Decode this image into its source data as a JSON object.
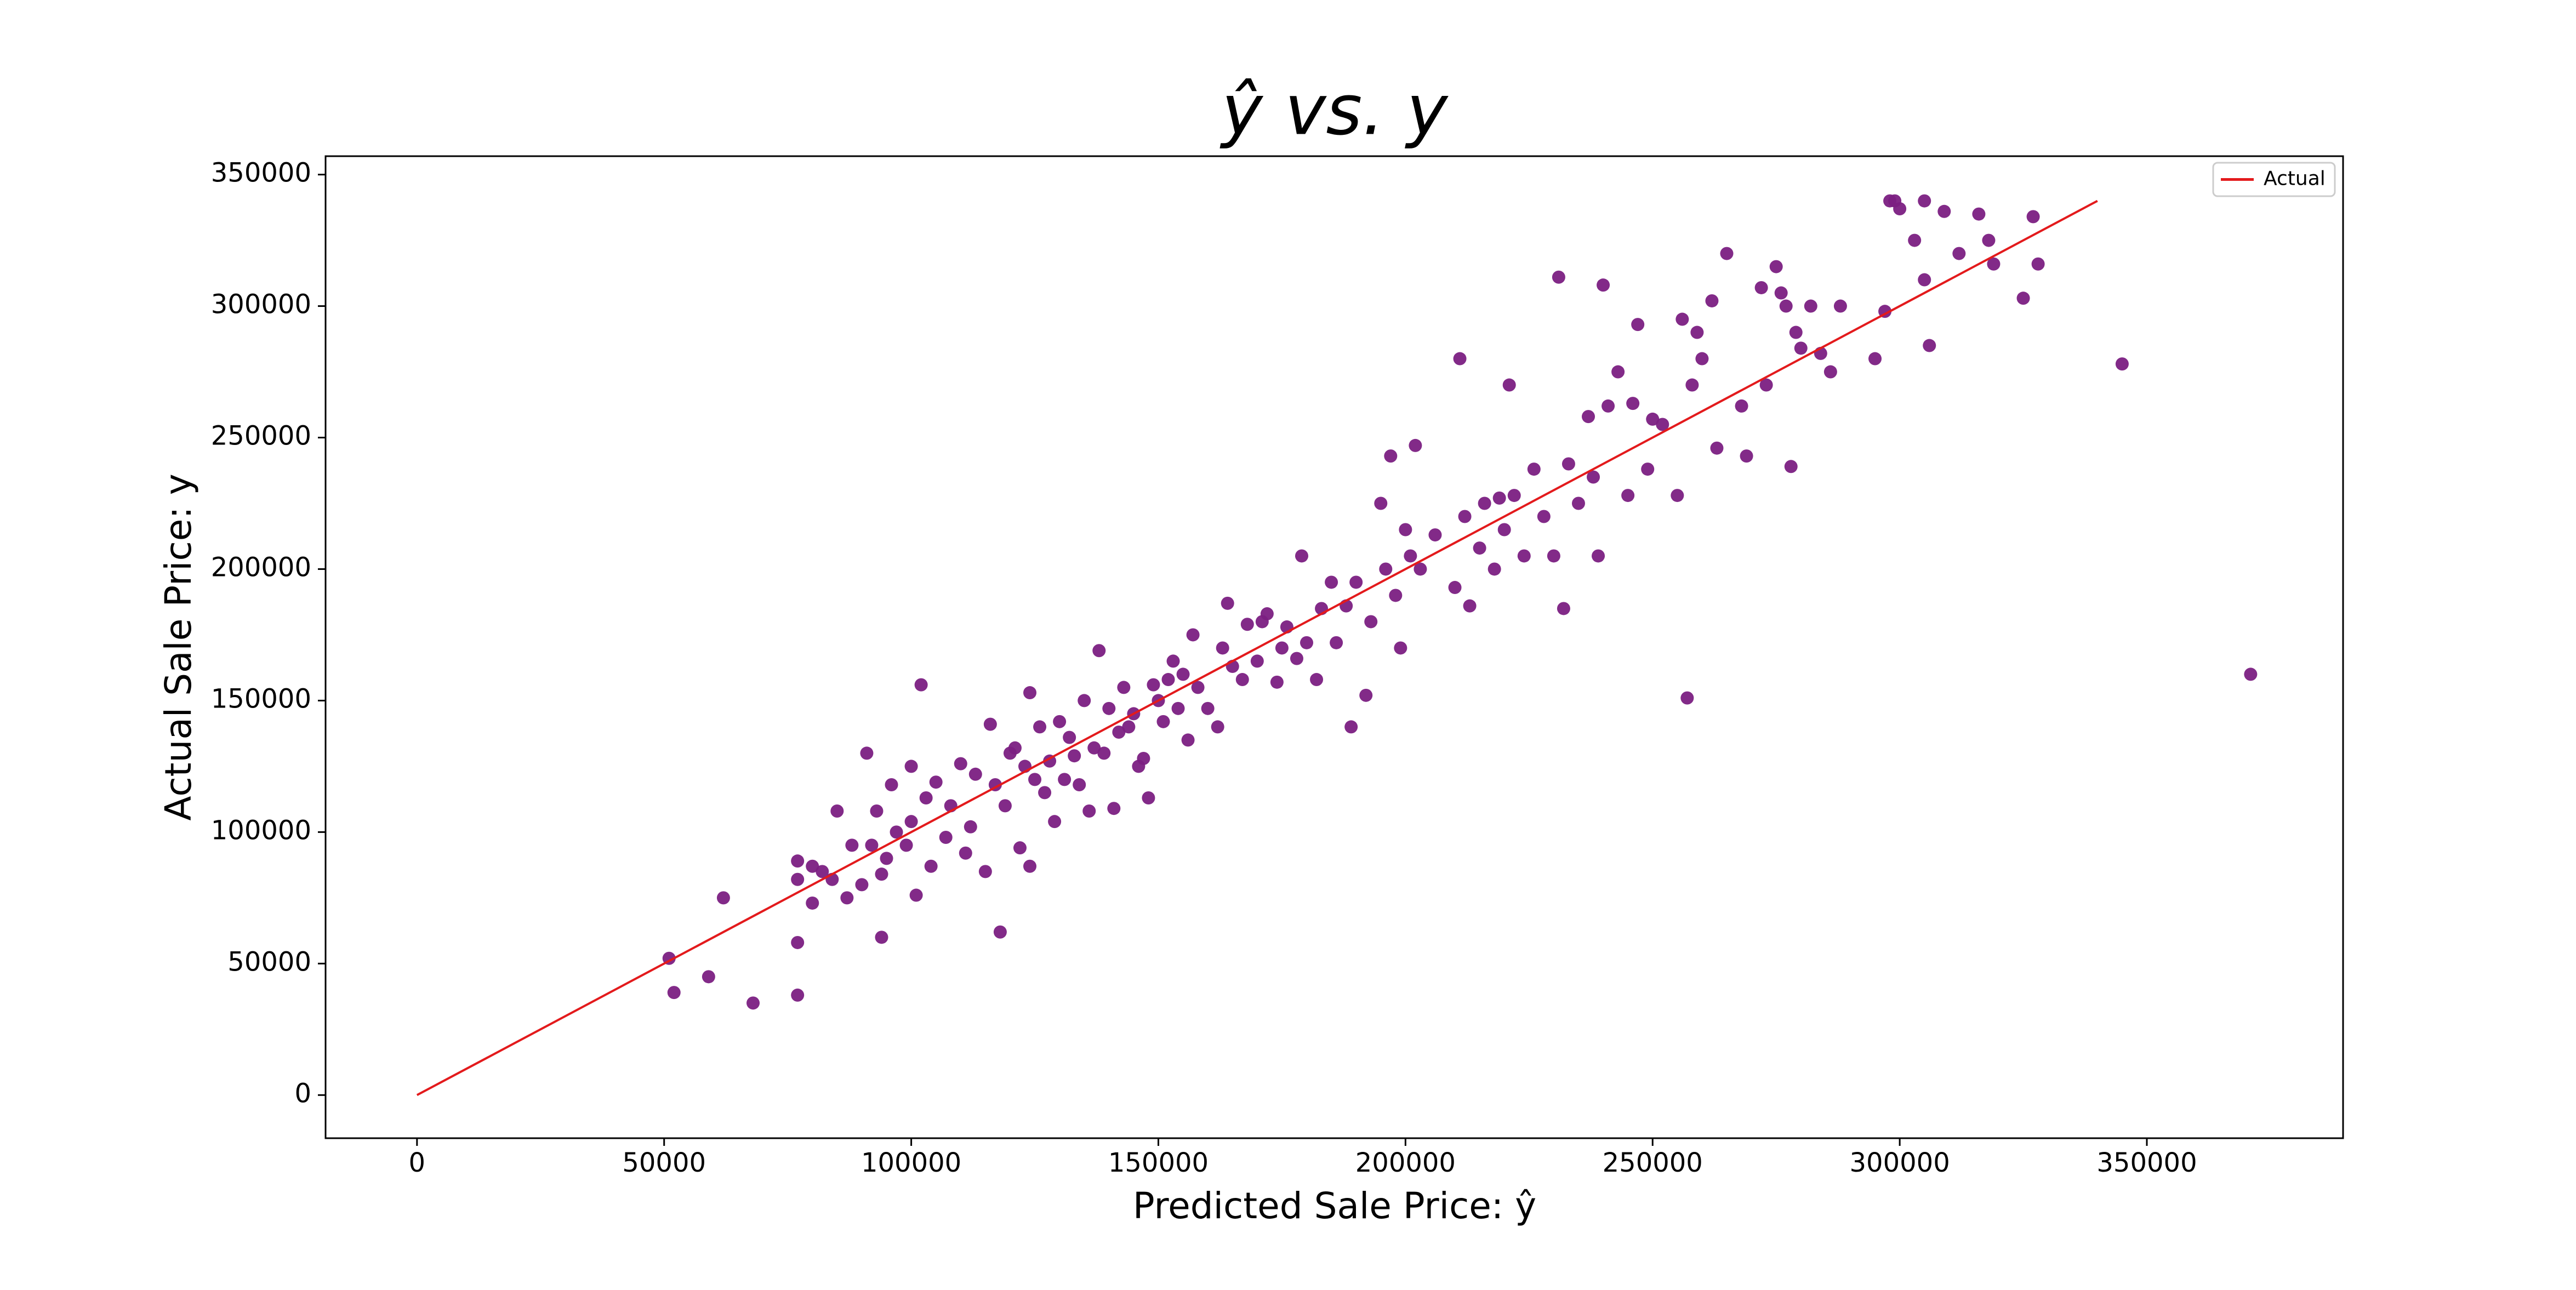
{
  "chart_data": {
    "type": "scatter",
    "title": "ŷ vs. y",
    "x_label": "Predicted Sale Price: ŷ",
    "y_label": "Actual Sale Price: y",
    "xlim": [
      -18500,
      389700
    ],
    "ylim": [
      -16400,
      357000
    ],
    "xticks": [
      0,
      50000,
      100000,
      150000,
      200000,
      250000,
      300000,
      350000
    ],
    "yticks": [
      0,
      50000,
      100000,
      150000,
      200000,
      250000,
      300000,
      350000
    ],
    "grid": false,
    "legend": "upper right",
    "series": [
      {
        "name": "Actual",
        "color": "#e31a1c",
        "x": [
          0,
          340000
        ],
        "values": [
          0,
          340000
        ]
      }
    ],
    "scatter": {
      "color": "#7b1f82",
      "x": [
        51000,
        52000,
        59000,
        62000,
        68000,
        77000,
        77000,
        77000,
        77000,
        80000,
        80000,
        82000,
        84000,
        85000,
        87000,
        88000,
        90000,
        91000,
        92000,
        93000,
        94000,
        94000,
        95000,
        96000,
        97000,
        99000,
        100000,
        100000,
        101000,
        102000,
        103000,
        104000,
        105000,
        107000,
        108000,
        110000,
        111000,
        112000,
        113000,
        115000,
        116000,
        117000,
        118000,
        119000,
        120000,
        121000,
        122000,
        123000,
        124000,
        124000,
        125000,
        126000,
        127000,
        128000,
        129000,
        130000,
        131000,
        132000,
        133000,
        134000,
        135000,
        136000,
        137000,
        138000,
        139000,
        140000,
        141000,
        142000,
        143000,
        144000,
        145000,
        146000,
        147000,
        148000,
        149000,
        150000,
        151000,
        152000,
        153000,
        154000,
        155000,
        156000,
        157000,
        158000,
        160000,
        162000,
        163000,
        164000,
        165000,
        167000,
        168000,
        170000,
        171000,
        172000,
        174000,
        175000,
        176000,
        178000,
        179000,
        180000,
        182000,
        183000,
        185000,
        186000,
        188000,
        189000,
        190000,
        192000,
        193000,
        195000,
        196000,
        197000,
        198000,
        199000,
        200000,
        201000,
        202000,
        203000,
        206000,
        210000,
        211000,
        212000,
        213000,
        215000,
        216000,
        218000,
        219000,
        220000,
        221000,
        222000,
        224000,
        226000,
        228000,
        230000,
        231000,
        232000,
        233000,
        235000,
        237000,
        238000,
        239000,
        240000,
        241000,
        243000,
        245000,
        246000,
        247000,
        249000,
        250000,
        252000,
        255000,
        256000,
        257000,
        258000,
        259000,
        260000,
        262000,
        263000,
        265000,
        268000,
        269000,
        272000,
        273000,
        275000,
        276000,
        277000,
        278000,
        279000,
        280000,
        282000,
        284000,
        286000,
        288000,
        295000,
        297000,
        298000,
        299000,
        300000,
        303000,
        305000,
        305000,
        306000,
        309000,
        312000,
        316000,
        318000,
        319000,
        325000,
        327000,
        328000,
        345000,
        371000
      ],
      "values": [
        52000,
        39000,
        45000,
        75000,
        35000,
        38000,
        58000,
        89000,
        82000,
        87000,
        73000,
        85000,
        82000,
        108000,
        75000,
        95000,
        80000,
        130000,
        95000,
        108000,
        60000,
        84000,
        90000,
        118000,
        100000,
        95000,
        104000,
        125000,
        76000,
        156000,
        113000,
        87000,
        119000,
        98000,
        110000,
        126000,
        92000,
        102000,
        122000,
        85000,
        141000,
        118000,
        62000,
        110000,
        130000,
        132000,
        94000,
        125000,
        87000,
        153000,
        120000,
        140000,
        115000,
        127000,
        104000,
        142000,
        120000,
        136000,
        129000,
        118000,
        150000,
        108000,
        132000,
        169000,
        130000,
        147000,
        109000,
        138000,
        155000,
        140000,
        145000,
        125000,
        128000,
        113000,
        156000,
        150000,
        142000,
        158000,
        165000,
        147000,
        160000,
        135000,
        175000,
        155000,
        147000,
        140000,
        170000,
        187000,
        163000,
        158000,
        179000,
        165000,
        180000,
        183000,
        157000,
        170000,
        178000,
        166000,
        205000,
        172000,
        158000,
        185000,
        195000,
        172000,
        186000,
        140000,
        195000,
        152000,
        180000,
        225000,
        200000,
        243000,
        190000,
        170000,
        215000,
        205000,
        247000,
        200000,
        213000,
        193000,
        280000,
        220000,
        186000,
        208000,
        225000,
        200000,
        227000,
        215000,
        270000,
        228000,
        205000,
        238000,
        220000,
        205000,
        311000,
        185000,
        240000,
        225000,
        258000,
        235000,
        205000,
        308000,
        262000,
        275000,
        228000,
        263000,
        293000,
        238000,
        257000,
        255000,
        228000,
        295000,
        151000,
        270000,
        290000,
        280000,
        302000,
        246000,
        320000,
        262000,
        243000,
        307000,
        270000,
        315000,
        305000,
        300000,
        239000,
        290000,
        284000,
        300000,
        282000,
        275000,
        300000,
        280000,
        298000,
        340000,
        340000,
        337000,
        325000,
        340000,
        310000,
        285000,
        336000,
        320000,
        335000,
        325000,
        316000,
        303000,
        334000,
        316000,
        278000,
        160000
      ]
    }
  }
}
